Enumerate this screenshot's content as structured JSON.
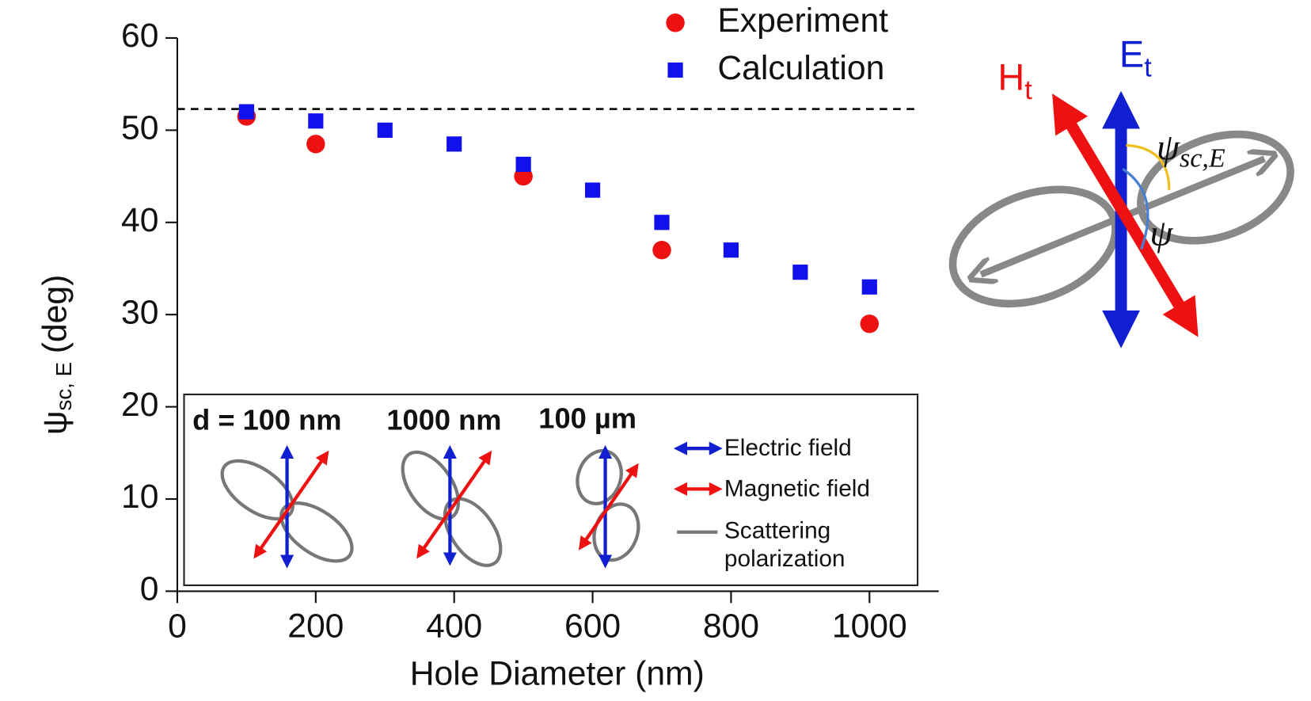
{
  "chart_data": {
    "type": "scatter",
    "x_label": "Hole Diameter (nm)",
    "y_label": {
      "symbol": "ψ",
      "subscript": "sc, E",
      "unit": "(deg)"
    },
    "xlim": [
      0,
      1100
    ],
    "xticks": [
      0,
      200,
      400,
      600,
      800,
      1000
    ],
    "ylim": [
      0,
      60
    ],
    "yticks": [
      0,
      10,
      20,
      30,
      40,
      50,
      60
    ],
    "hline": 52.3,
    "series": [
      {
        "name": "Experiment",
        "color": "#ee1111",
        "marker": "circle",
        "x": [
          100,
          200,
          500,
          700,
          1000
        ],
        "values": [
          51.5,
          48.5,
          45,
          37,
          29
        ]
      },
      {
        "name": "Calculation",
        "color": "#1111ee",
        "marker": "square",
        "x": [
          100,
          200,
          300,
          400,
          500,
          600,
          700,
          800,
          900,
          1000
        ],
        "values": [
          52,
          51,
          50,
          48.5,
          46.3,
          43.5,
          40,
          37,
          34.6,
          33
        ]
      }
    ],
    "inset": {
      "sizes": [
        "d = 100 nm",
        "1000 nm",
        "100 µm"
      ],
      "legend": [
        "Electric field",
        "Magnetic field",
        "Scattering",
        "polarization"
      ]
    },
    "diagram": {
      "h": "H",
      "h_sub": "t",
      "e": "E",
      "e_sub": "t",
      "psi_sc": "ψ",
      "psi_sc_sub": "sc,E",
      "psi": "ψ"
    }
  }
}
